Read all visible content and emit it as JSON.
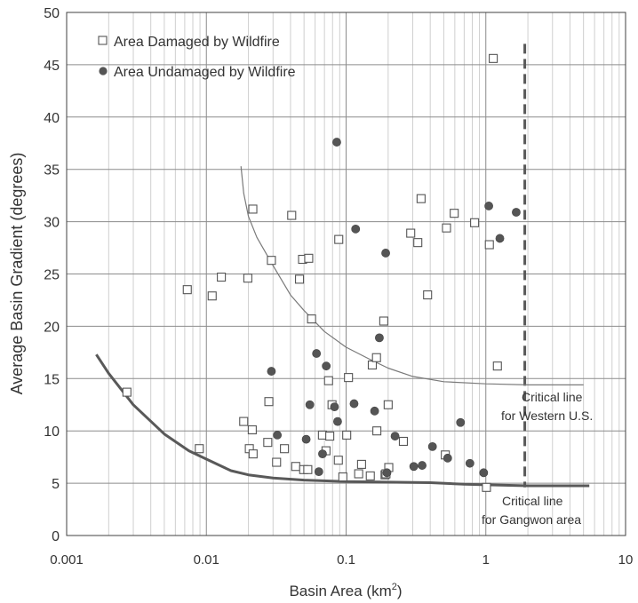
{
  "chart_data": {
    "type": "scatter",
    "title": "",
    "xlabel": "Basin Area (km",
    "xlabel_sup": "2",
    "xlabel_end": ")",
    "ylabel": "Average Basin Gradient (degrees)",
    "xscale": "log",
    "xlim": [
      0.001,
      10
    ],
    "ylim": [
      0,
      50
    ],
    "x_ticks": [
      "0.001",
      "0.01",
      "0.1",
      "1",
      "10"
    ],
    "y_ticks": [
      "0",
      "5",
      "10",
      "15",
      "20",
      "25",
      "30",
      "35",
      "40",
      "45",
      "50"
    ],
    "grid": "major and minor vertical, major horizontal",
    "legend_position": "top-left",
    "series": [
      {
        "name": "Area Damaged by Wildfire",
        "marker": "open-square",
        "color": "#555555",
        "points": [
          [
            0.0027,
            13.7
          ],
          [
            0.0073,
            23.5
          ],
          [
            0.0089,
            8.3
          ],
          [
            0.011,
            22.9
          ],
          [
            0.0128,
            24.7
          ],
          [
            0.0185,
            10.9
          ],
          [
            0.0198,
            24.6
          ],
          [
            0.0203,
            8.3
          ],
          [
            0.0213,
            10.1
          ],
          [
            0.0215,
            31.2
          ],
          [
            0.0216,
            7.8
          ],
          [
            0.0275,
            8.9
          ],
          [
            0.028,
            12.8
          ],
          [
            0.0292,
            26.3
          ],
          [
            0.0318,
            7.0
          ],
          [
            0.0362,
            8.3
          ],
          [
            0.0408,
            30.6
          ],
          [
            0.0436,
            6.6
          ],
          [
            0.0464,
            24.5
          ],
          [
            0.0488,
            26.4
          ],
          [
            0.0497,
            6.3
          ],
          [
            0.0532,
            6.3
          ],
          [
            0.054,
            26.5
          ],
          [
            0.0566,
            20.7
          ],
          [
            0.0677,
            9.6
          ],
          [
            0.0718,
            8.1
          ],
          [
            0.0749,
            14.8
          ],
          [
            0.0764,
            9.5
          ],
          [
            0.0793,
            12.5
          ],
          [
            0.088,
            7.2
          ],
          [
            0.0886,
            28.3
          ],
          [
            0.0948,
            5.6
          ],
          [
            0.101,
            9.6
          ],
          [
            0.104,
            15.1
          ],
          [
            0.123,
            5.9
          ],
          [
            0.129,
            6.8
          ],
          [
            0.149,
            5.7
          ],
          [
            0.154,
            16.3
          ],
          [
            0.165,
            17.0
          ],
          [
            0.166,
            10.0
          ],
          [
            0.186,
            20.5
          ],
          [
            0.19,
            5.8
          ],
          [
            0.193,
            5.9
          ],
          [
            0.2,
            12.5
          ],
          [
            0.202,
            6.5
          ],
          [
            0.257,
            9.0
          ],
          [
            0.29,
            28.9
          ],
          [
            0.326,
            28.0
          ],
          [
            0.344,
            32.2
          ],
          [
            0.383,
            23.0
          ],
          [
            0.513,
            7.7
          ],
          [
            0.523,
            29.4
          ],
          [
            0.594,
            30.8
          ],
          [
            0.831,
            29.9
          ],
          [
            1.01,
            4.6
          ],
          [
            1.06,
            27.8
          ],
          [
            1.13,
            45.6
          ],
          [
            1.21,
            16.2
          ]
        ]
      },
      {
        "name": "Area Undamaged by Wildfire",
        "marker": "filled-circle",
        "color": "#555555",
        "points": [
          [
            0.0292,
            15.7
          ],
          [
            0.0322,
            9.6
          ],
          [
            0.0518,
            9.2
          ],
          [
            0.055,
            12.5
          ],
          [
            0.0614,
            17.4
          ],
          [
            0.0638,
            6.1
          ],
          [
            0.0678,
            7.8
          ],
          [
            0.0721,
            16.2
          ],
          [
            0.0826,
            12.3
          ],
          [
            0.0857,
            37.6
          ],
          [
            0.0869,
            10.9
          ],
          [
            0.114,
            12.6
          ],
          [
            0.117,
            29.3
          ],
          [
            0.16,
            11.9
          ],
          [
            0.173,
            18.9
          ],
          [
            0.192,
            27.0
          ],
          [
            0.196,
            6.0
          ],
          [
            0.224,
            9.5
          ],
          [
            0.305,
            6.6
          ],
          [
            0.35,
            6.7
          ],
          [
            0.415,
            8.5
          ],
          [
            0.533,
            7.4
          ],
          [
            0.659,
            10.8
          ],
          [
            0.769,
            6.9
          ],
          [
            0.965,
            6.0
          ],
          [
            1.05,
            31.5
          ],
          [
            1.26,
            28.4
          ],
          [
            1.65,
            30.9
          ]
        ]
      }
    ],
    "curves": [
      {
        "name": "Critical line for Western U.S.",
        "label_lines": [
          "Critical line",
          "for Western U.S."
        ],
        "color": "#7a7a7a",
        "width": "thin",
        "points": [
          [
            0.0177,
            35.3
          ],
          [
            0.0185,
            32.7
          ],
          [
            0.02,
            30.5
          ],
          [
            0.023,
            28.5
          ],
          [
            0.03,
            25.8
          ],
          [
            0.04,
            23.0
          ],
          [
            0.05,
            21.5
          ],
          [
            0.07,
            19.5
          ],
          [
            0.1,
            18.0
          ],
          [
            0.15,
            16.8
          ],
          [
            0.2,
            16.0
          ],
          [
            0.3,
            15.2
          ],
          [
            0.5,
            14.7
          ],
          [
            1.0,
            14.5
          ],
          [
            2.0,
            14.4
          ],
          [
            3.0,
            14.4
          ],
          [
            5.0,
            14.4
          ]
        ]
      },
      {
        "name": "Critical line for Gangwon area",
        "label_lines": [
          "Critical line",
          "for Gangwon area"
        ],
        "color": "#595959",
        "width": "thick",
        "points": [
          [
            0.00163,
            17.3
          ],
          [
            0.002,
            15.5
          ],
          [
            0.003,
            12.5
          ],
          [
            0.005,
            9.7
          ],
          [
            0.0075,
            8.1
          ],
          [
            0.01,
            7.3
          ],
          [
            0.015,
            6.2
          ],
          [
            0.02,
            5.8
          ],
          [
            0.03,
            5.5
          ],
          [
            0.05,
            5.3
          ],
          [
            0.1,
            5.15
          ],
          [
            0.2,
            5.1
          ],
          [
            0.4,
            5.05
          ],
          [
            0.7,
            4.9
          ],
          [
            1.0,
            4.85
          ],
          [
            2.0,
            4.75
          ],
          [
            3.0,
            4.75
          ],
          [
            5.5,
            4.75
          ]
        ]
      }
    ],
    "reference_lines": [
      {
        "type": "vertical",
        "x": 1.9,
        "style": "dashed",
        "color": "#595959"
      }
    ]
  }
}
